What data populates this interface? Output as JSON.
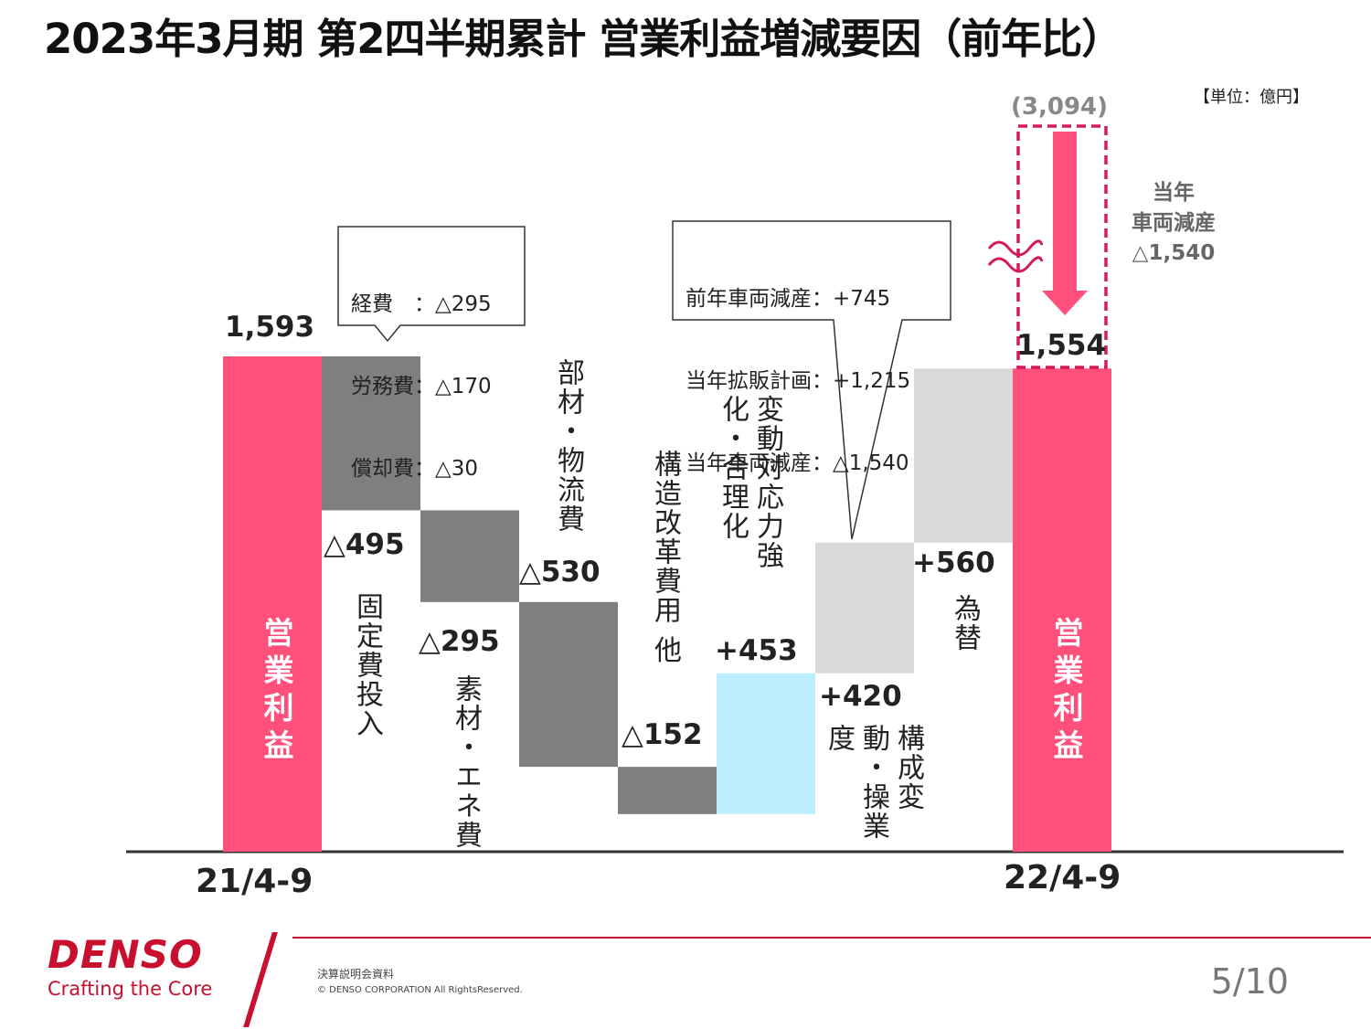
{
  "title": "2023年3月期 第2四半期累計 営業利益増減要因（前年比）",
  "unit": "【単位：億円】",
  "chart_data": {
    "type": "waterfall",
    "ylim": [
      0,
      1593
    ],
    "colors": {
      "total": "#ff4f7b",
      "negative": "#7f7f7f",
      "improve": "#bdeeff",
      "volume": "#d9d9d9",
      "fx": "#d9d9d9",
      "accent": "#d6195a"
    },
    "steps": [
      {
        "id": "start",
        "kind": "total",
        "value": 1593,
        "label": "1,593",
        "bar_text": "営業利益",
        "category": "21/4-9"
      },
      {
        "id": "fixed",
        "kind": "negative",
        "value": -495,
        "label": "△495",
        "name": "固定費投入"
      },
      {
        "id": "materials",
        "kind": "negative",
        "value": -295,
        "label": "△295",
        "name": "素材・エネ費"
      },
      {
        "id": "logistics",
        "kind": "negative",
        "value": -530,
        "label": "△530",
        "name": "部材・物流費"
      },
      {
        "id": "restructure",
        "kind": "negative",
        "value": -152,
        "label": "△152",
        "name": "構造改革費用 他"
      },
      {
        "id": "rationalize",
        "kind": "improve",
        "value": 453,
        "label": "+453",
        "name": "変動対応力強化・合理化"
      },
      {
        "id": "volume",
        "kind": "volume",
        "value": 420,
        "label": "+420",
        "name": "構成変動・操業度"
      },
      {
        "id": "fx",
        "kind": "fx",
        "value": 560,
        "label": "+560",
        "name": "為替"
      },
      {
        "id": "end",
        "kind": "total",
        "value": 1554,
        "label": "1,554",
        "bar_text": "営業利益",
        "category": "22/4-9"
      }
    ],
    "fixed_cost_breakdown": [
      "経費　：△295",
      "労務費：△170",
      "償却費：△30"
    ],
    "volume_breakdown": [
      "前年車両減産：+745",
      "当年拡販計画：+1,215",
      "当年車両減産：△1,540"
    ],
    "prior_value": "(3,094)",
    "current_year_reduction": [
      "当年",
      "車両減産",
      "△1,540"
    ]
  },
  "footer": {
    "logo": "DENSO",
    "tagline": "Crafting the Core",
    "doc": "決算説明会資料",
    "copyright": "© DENSO CORPORATION All RightsReserved.",
    "page": "5/10"
  }
}
